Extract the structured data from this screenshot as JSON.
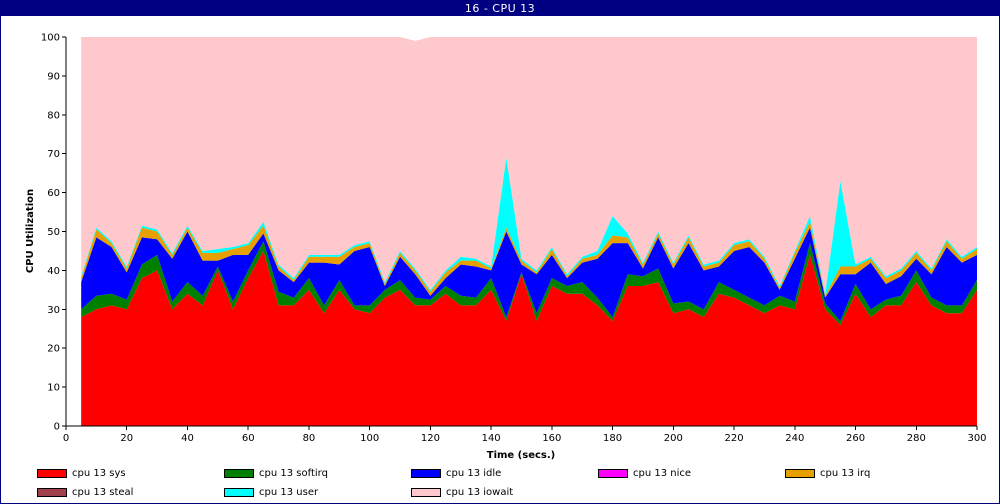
{
  "window": {
    "title": "16 - CPU 13"
  },
  "chart_data": {
    "type": "area",
    "stacked": true,
    "xlabel": "Time (secs.)",
    "ylabel": "CPU Utilization",
    "xlim": [
      0,
      300
    ],
    "ylim": [
      0,
      100
    ],
    "xticks": [
      0,
      20,
      40,
      60,
      80,
      100,
      120,
      140,
      160,
      180,
      200,
      220,
      240,
      260,
      280,
      300
    ],
    "yticks": [
      0,
      10,
      20,
      30,
      40,
      50,
      60,
      70,
      80,
      90,
      100
    ],
    "grid": false,
    "legend_position": "bottom",
    "x": [
      5,
      10,
      15,
      20,
      25,
      30,
      35,
      40,
      45,
      50,
      55,
      60,
      65,
      70,
      75,
      80,
      85,
      90,
      95,
      100,
      105,
      110,
      115,
      120,
      125,
      130,
      135,
      140,
      145,
      150,
      155,
      160,
      165,
      170,
      175,
      180,
      185,
      190,
      195,
      200,
      205,
      210,
      215,
      220,
      225,
      230,
      235,
      240,
      245,
      250,
      255,
      260,
      265,
      270,
      275,
      280,
      285,
      290,
      295,
      300
    ],
    "series": [
      {
        "name": "cpu 13 sys",
        "color": "#ff0000",
        "values": [
          28,
          30,
          31,
          30,
          38,
          40,
          30,
          34,
          31,
          40,
          30,
          38,
          45,
          31,
          31,
          35,
          29,
          35,
          30,
          29,
          33,
          35,
          31,
          31,
          34,
          31,
          31,
          35,
          27,
          39,
          27,
          36,
          34,
          34,
          31,
          27,
          36,
          36,
          37,
          29,
          30,
          28,
          34,
          33,
          31,
          29,
          31,
          30,
          44,
          30,
          26,
          34,
          28,
          31,
          31,
          37,
          31,
          29,
          29,
          35
        ]
      },
      {
        "name": "cpu 13 softirq",
        "color": "#008000",
        "values": [
          2,
          3.5,
          3,
          2.5,
          3.5,
          4,
          2,
          3,
          2.5,
          1,
          2,
          2,
          2.5,
          3.5,
          2,
          3,
          2,
          2.5,
          1,
          2,
          2,
          2.5,
          2,
          1.5,
          2,
          2.5,
          2,
          3,
          1,
          0.5,
          2,
          2,
          2,
          3,
          2,
          1,
          3,
          2.5,
          3.5,
          2.5,
          2,
          2,
          3,
          2,
          2,
          2,
          2.5,
          2,
          3,
          1.5,
          1,
          2.5,
          2,
          1.5,
          2.5,
          3,
          2,
          2,
          2,
          2.5
        ]
      },
      {
        "name": "cpu 13 idle",
        "color": "#0000ff",
        "values": [
          7,
          15,
          12,
          7,
          7,
          4,
          11,
          13,
          9,
          1.5,
          12,
          4,
          2,
          5.5,
          4,
          4,
          11,
          4,
          14,
          15,
          1,
          6,
          6,
          1,
          2,
          8,
          8,
          2,
          22,
          2,
          10,
          6,
          2,
          5,
          10,
          19,
          8,
          2,
          8,
          9,
          15,
          10,
          4,
          10,
          13,
          11,
          1.5,
          11,
          4,
          1.5,
          12,
          2.5,
          12,
          4,
          5,
          3,
          6,
          15,
          11,
          6.5
        ]
      },
      {
        "name": "cpu 13 nice",
        "color": "#ff00ff",
        "values": [
          0,
          0,
          0,
          0,
          0,
          0,
          0,
          0,
          0,
          0,
          0,
          0,
          0,
          0,
          0,
          0,
          0,
          0,
          0,
          0,
          0,
          0,
          0,
          0,
          0,
          0,
          0,
          0,
          0,
          0,
          0,
          0,
          0,
          0,
          0,
          0,
          0,
          0,
          0,
          0,
          0,
          0,
          0,
          0,
          0,
          0,
          0,
          0,
          0,
          0,
          0,
          0,
          0,
          0,
          0,
          0,
          0,
          0,
          0,
          0
        ]
      },
      {
        "name": "cpu 13 irq",
        "color": "#e8a000",
        "values": [
          1,
          2,
          1,
          1,
          2.5,
          2,
          1,
          1,
          2,
          2,
          1.5,
          2.5,
          2,
          1,
          0.5,
          1.5,
          1.5,
          2,
          1,
          1,
          0.5,
          1,
          1,
          1,
          1.5,
          1,
          1.5,
          0.5,
          1,
          1,
          0.5,
          1.5,
          0.5,
          1,
          1,
          2,
          1.5,
          1,
          1,
          1,
          1.5,
          1,
          1,
          1.5,
          1.5,
          1,
          0.5,
          1.5,
          1.5,
          0.5,
          2,
          2,
          1,
          1.5,
          1.5,
          1.5,
          1,
          1.5,
          1,
          1.5
        ]
      },
      {
        "name": "cpu 13 steal",
        "color": "#a0404a",
        "values": [
          0,
          0,
          0,
          0,
          0,
          0,
          0,
          0,
          0,
          0,
          0,
          0,
          0,
          0,
          0,
          0,
          0,
          0,
          0,
          0,
          0,
          0,
          0,
          0,
          0,
          0,
          0,
          0,
          0,
          0,
          0,
          0,
          0,
          0,
          0,
          0,
          0,
          0,
          0,
          0,
          0,
          0,
          0,
          0,
          0,
          0,
          0,
          0,
          0,
          0,
          0,
          0,
          0,
          0,
          0,
          0,
          0,
          0,
          0,
          0
        ]
      },
      {
        "name": "cpu 13 user",
        "color": "#00ffff",
        "values": [
          0.5,
          0.5,
          0.5,
          0.5,
          0.5,
          0.5,
          0.5,
          0.5,
          0.5,
          1,
          0.5,
          0.5,
          1,
          0.5,
          0.5,
          0.5,
          0.5,
          0.5,
          0.5,
          0.5,
          0.5,
          0.5,
          0.5,
          0.5,
          0.5,
          1,
          0.5,
          0.5,
          18,
          0.5,
          0.5,
          0.5,
          0.5,
          0.5,
          1,
          5,
          1,
          0.5,
          0.5,
          0.5,
          0.5,
          0.5,
          0.5,
          0.5,
          0.5,
          0.5,
          0.5,
          0.5,
          1.5,
          0.5,
          22,
          0.5,
          0.5,
          0.5,
          0.5,
          0.5,
          0.5,
          0.5,
          0.5,
          0.5
        ]
      },
      {
        "name": "cpu 13 iowait",
        "color": "#ffc8cc",
        "values": [
          61.5,
          49,
          52.5,
          59,
          48.5,
          49.5,
          55.5,
          48.5,
          55,
          54.5,
          54,
          53,
          47.5,
          58.5,
          62,
          56,
          56,
          56,
          53.5,
          52.5,
          63,
          55,
          58.5,
          65,
          60,
          56.5,
          57,
          59,
          31,
          57,
          60,
          54,
          61,
          56.5,
          55,
          46,
          50.5,
          58,
          50,
          58,
          51,
          58.5,
          57.5,
          53,
          52,
          56.5,
          64,
          55,
          46,
          66,
          37,
          58.5,
          56.5,
          61.5,
          59.5,
          55,
          59.5,
          52,
          56.5,
          54
        ]
      }
    ]
  }
}
